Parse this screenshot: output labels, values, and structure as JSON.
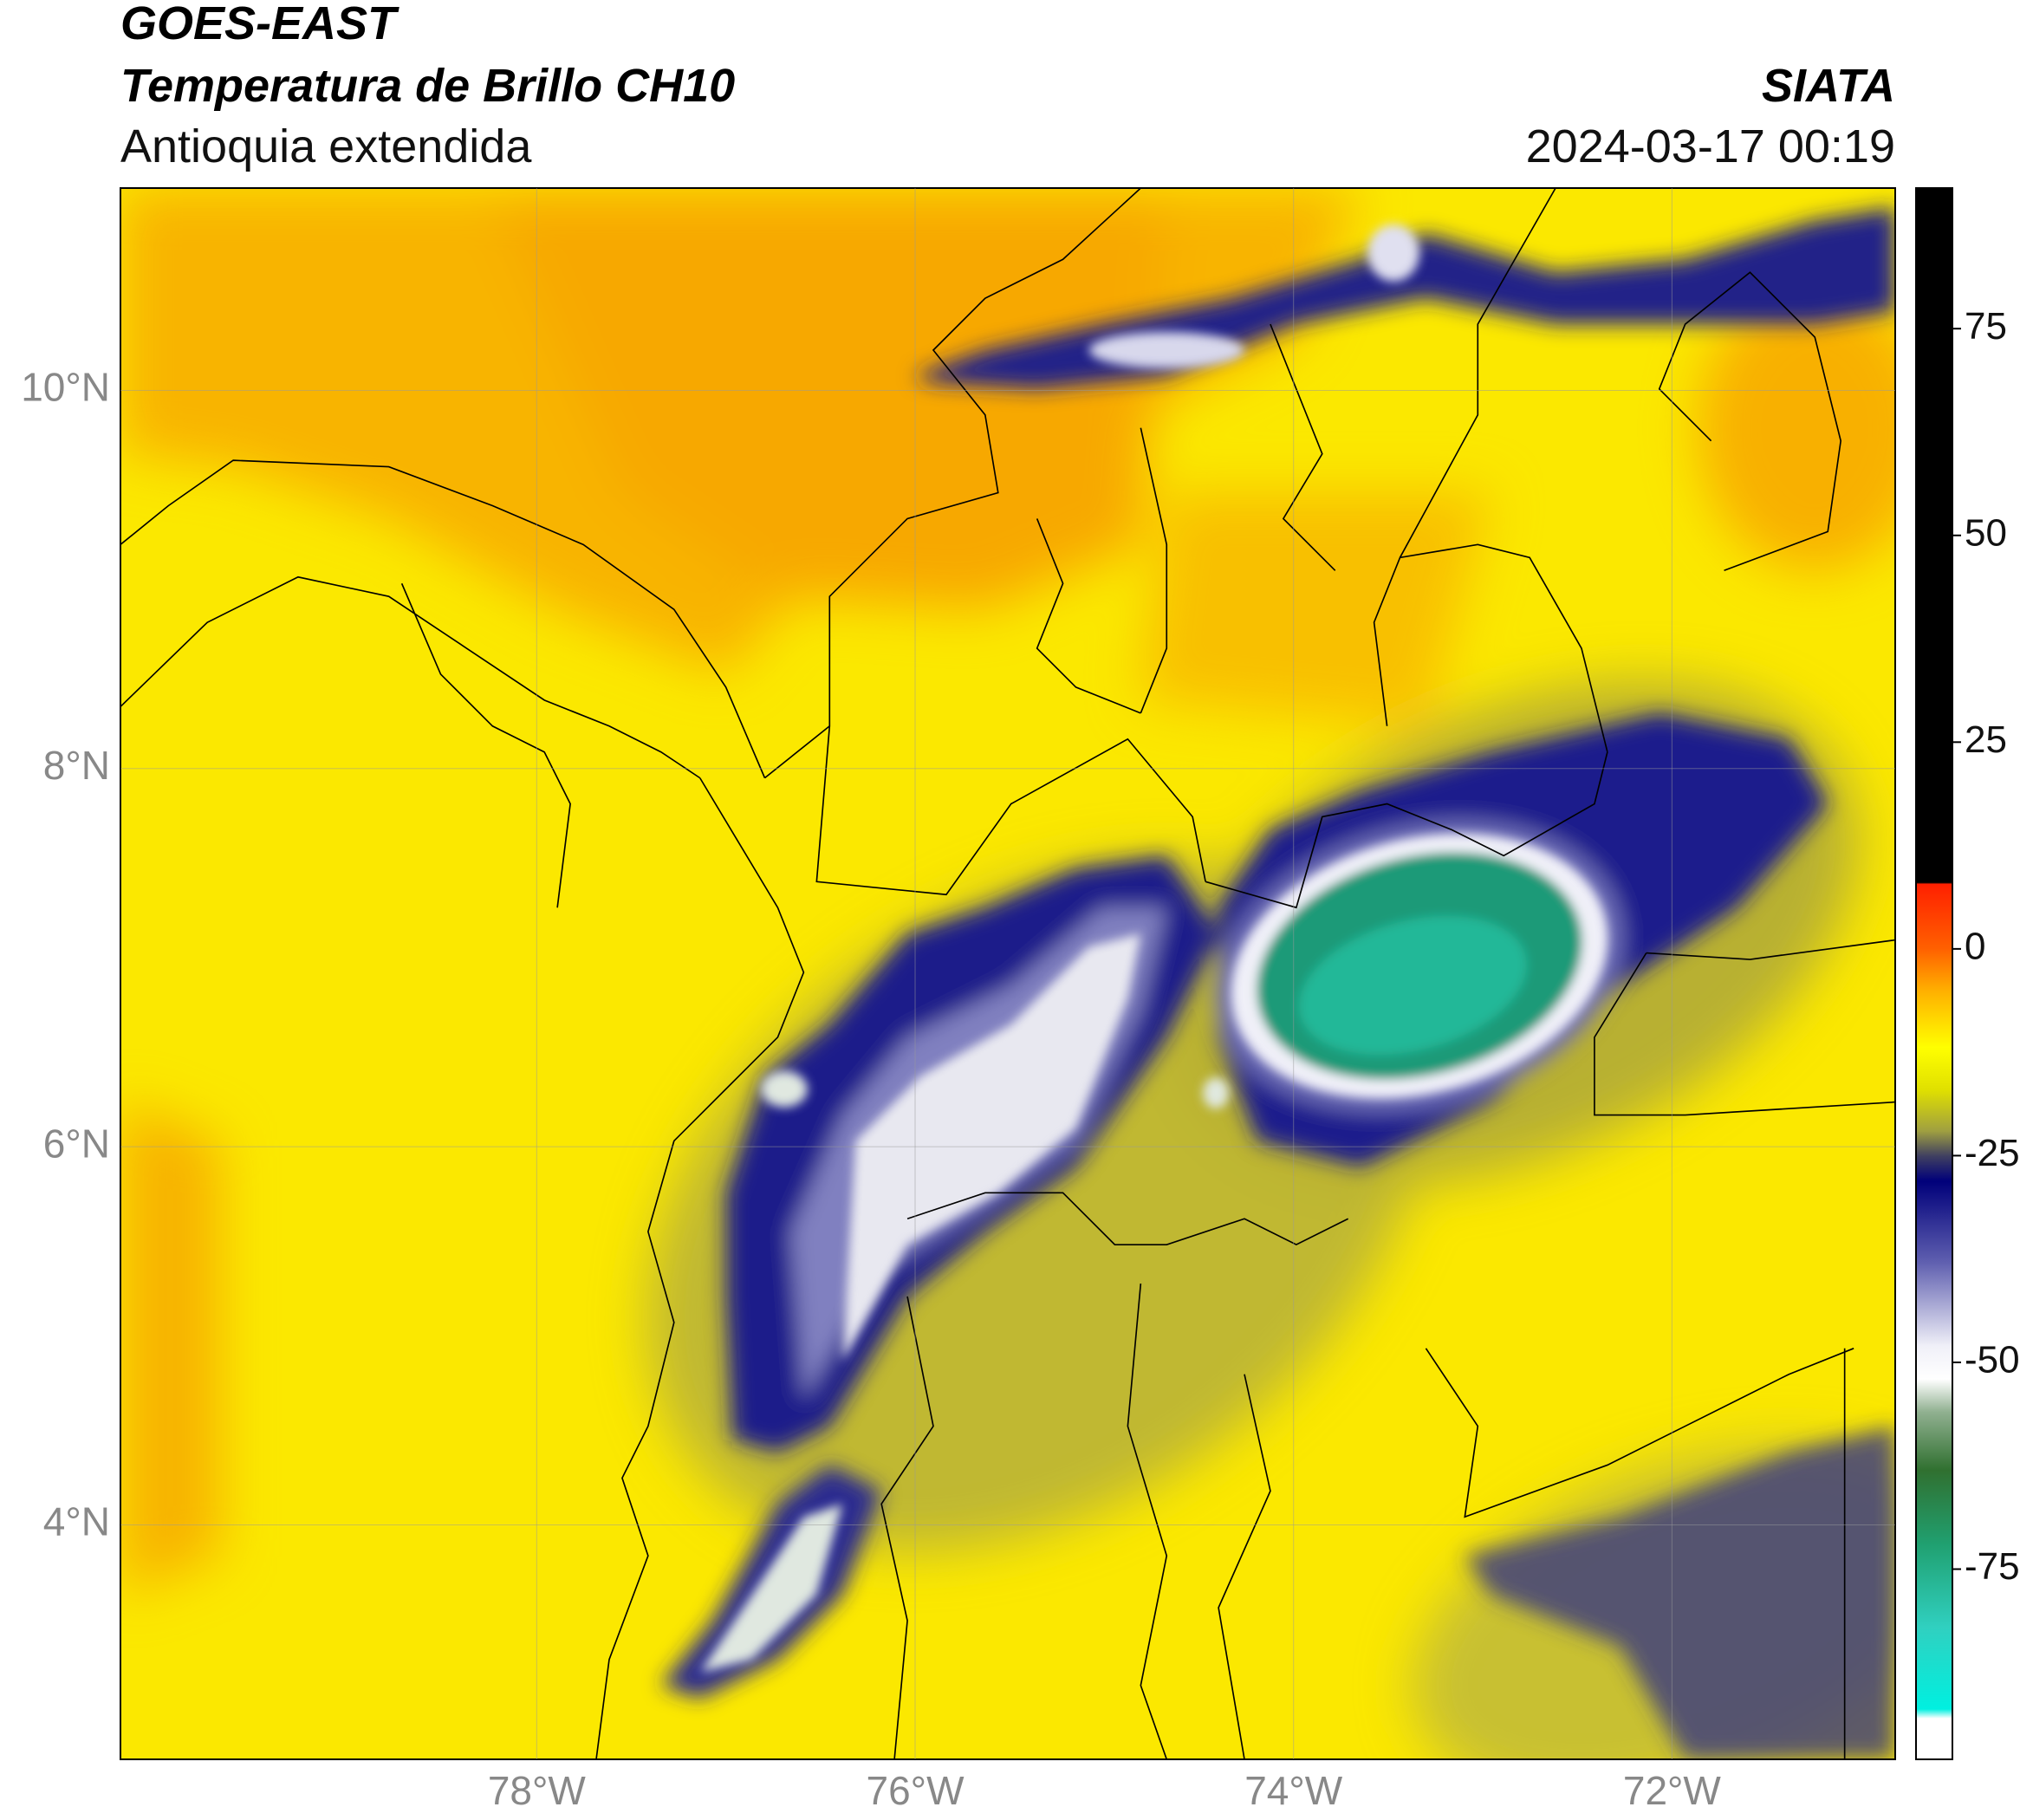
{
  "header": {
    "title": "GOES-EAST",
    "subtitle": "Temperatura de Brillo CH10",
    "region": "Antioquia extendida",
    "source": "SIATA",
    "datetime": "2024-03-17 00:19"
  },
  "map": {
    "lonlim": [
      -80.2,
      -70.82
    ],
    "latlim": [
      2.76,
      11.07
    ],
    "lonticks": [
      {
        "value": -78,
        "label": "78°W"
      },
      {
        "value": -76,
        "label": "76°W"
      },
      {
        "value": -74,
        "label": "74°W"
      },
      {
        "value": -72,
        "label": "72°W"
      }
    ],
    "latticks": [
      {
        "value": 4,
        "label": "4°N"
      },
      {
        "value": 6,
        "label": "6°N"
      },
      {
        "value": 8,
        "label": "8°N"
      },
      {
        "value": 10,
        "label": "10°N"
      }
    ],
    "grid": true
  },
  "colorbar": {
    "lim": [
      -98,
      92
    ],
    "ticks": [
      -75,
      -50,
      -25,
      0,
      25,
      50,
      75
    ]
  }
}
